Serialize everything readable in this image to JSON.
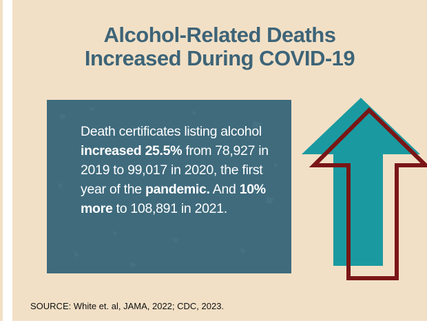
{
  "title": {
    "line1": "Alcohol-Related Deaths",
    "line2": "Increased During COVID-19"
  },
  "body": {
    "p1": "Death certificates listing alcohol ",
    "b1": "increased 25.5%",
    "p2": " from 78,927 in 2019 to 99,017 in 2020, the first year of the ",
    "b2": "pandemic.",
    "p3": " And ",
    "b3": "10% more",
    "p4": " to 108,891 in 2021."
  },
  "source": "SOURCE: White et. al, JAMA, 2022; CDC, 2023.",
  "colors": {
    "background": "#f2e0c6",
    "title": "#3d6478",
    "textbox": "#3f6b7d",
    "arrow_fill": "#1a9aa0",
    "arrow_outline": "#7a1616"
  },
  "icons": {
    "arrow": "up-arrow-icon"
  }
}
